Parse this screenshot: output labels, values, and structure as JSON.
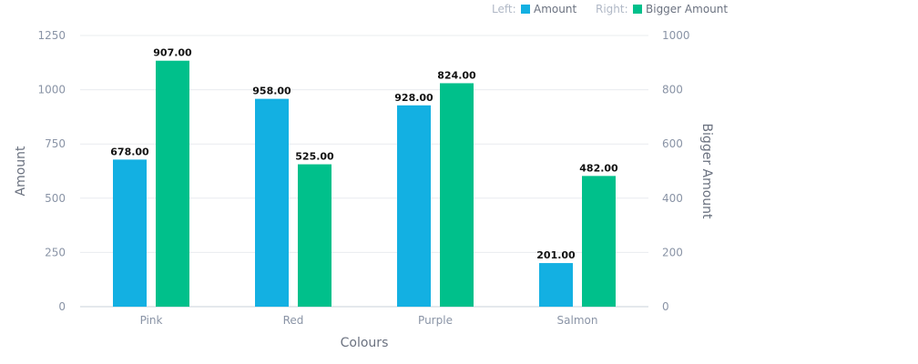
{
  "chart_data": {
    "type": "bar",
    "categories": [
      "Pink",
      "Red",
      "Purple",
      "Salmon"
    ],
    "xlabel": "Colours",
    "series": [
      {
        "name": "Amount",
        "axis": "left",
        "color": "#13b0e2",
        "values": [
          678,
          958,
          928,
          201
        ],
        "labels": [
          "678.00",
          "958.00",
          "928.00",
          "201.00"
        ]
      },
      {
        "name": "Bigger Amount",
        "axis": "right",
        "color": "#00c08b",
        "values": [
          907,
          525,
          824,
          482
        ],
        "labels": [
          "907.00",
          "525.00",
          "824.00",
          "482.00"
        ]
      }
    ],
    "y_left": {
      "label": "Amount",
      "lim": [
        0,
        1250
      ],
      "ticks": [
        "0",
        "250",
        "500",
        "750",
        "1000",
        "1250"
      ]
    },
    "y_right": {
      "label": "Bigger Amount",
      "lim": [
        0,
        1000
      ],
      "ticks": [
        "0",
        "200",
        "400",
        "600",
        "800",
        "1000"
      ]
    },
    "grid": true,
    "legend": {
      "placement": "top-right",
      "items": [
        {
          "prefix": "Left:",
          "name": "Amount",
          "color": "#13b0e2"
        },
        {
          "prefix": "Right:",
          "name": "Bigger Amount",
          "color": "#00c08b"
        }
      ]
    }
  }
}
